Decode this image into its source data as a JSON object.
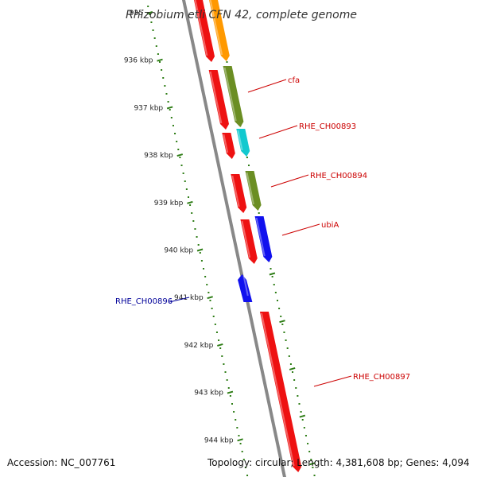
{
  "title": "Rhizobium etli CFN 42, complete genome",
  "accession_text": "Accession: NC_007761",
  "summary_text": "Topology: circular; Length: 4,381,608 bp; Genes: 4,094",
  "colors": {
    "tick_dots": "#2e7d16",
    "backbone": "#888888",
    "red_gene": "#ee1111",
    "orange_gene": "#ff9900",
    "olive_gene": "#6b8e23",
    "cyan_gene": "#12c9cf",
    "blue_gene": "#1111ee",
    "label_red": "#cc0000",
    "label_blue": "#000099"
  },
  "ticks": [
    {
      "kbp": 935,
      "label": "935"
    },
    {
      "kbp": 936,
      "label": "936 kbp"
    },
    {
      "kbp": 937,
      "label": "937 kbp"
    },
    {
      "kbp": 938,
      "label": "938 kbp"
    },
    {
      "kbp": 939,
      "label": "939 kbp"
    },
    {
      "kbp": 940,
      "label": "940 kbp"
    },
    {
      "kbp": 941,
      "label": "941 kbp"
    },
    {
      "kbp": 942,
      "label": "942 kbp"
    },
    {
      "kbp": 943,
      "label": "943 kbp"
    },
    {
      "kbp": 944,
      "label": "944 kbp"
    }
  ],
  "genes": [
    {
      "name": "",
      "color": "red_gene",
      "lane": "fwd_inner"
    },
    {
      "name": "",
      "color": "orange_gene",
      "lane": "fwd_outer"
    },
    {
      "name": "",
      "color": "red_gene",
      "lane": "fwd_inner"
    },
    {
      "name": "cfa",
      "color": "olive_gene",
      "lane": "fwd_outer"
    },
    {
      "name": "",
      "color": "red_gene",
      "lane": "fwd_inner"
    },
    {
      "name": "RHE_CH00893",
      "color": "cyan_gene",
      "lane": "fwd_outer"
    },
    {
      "name": "",
      "color": "red_gene",
      "lane": "fwd_inner"
    },
    {
      "name": "RHE_CH00894",
      "color": "olive_gene",
      "lane": "fwd_outer"
    },
    {
      "name": "",
      "color": "red_gene",
      "lane": "fwd_inner"
    },
    {
      "name": "ubiA",
      "color": "blue_gene",
      "lane": "fwd_outer"
    },
    {
      "name": "RHE_CH00896",
      "color": "blue_gene",
      "lane": "reverse"
    },
    {
      "name": "RHE_CH00897",
      "color": "red_gene",
      "lane": "fwd_inner"
    }
  ]
}
